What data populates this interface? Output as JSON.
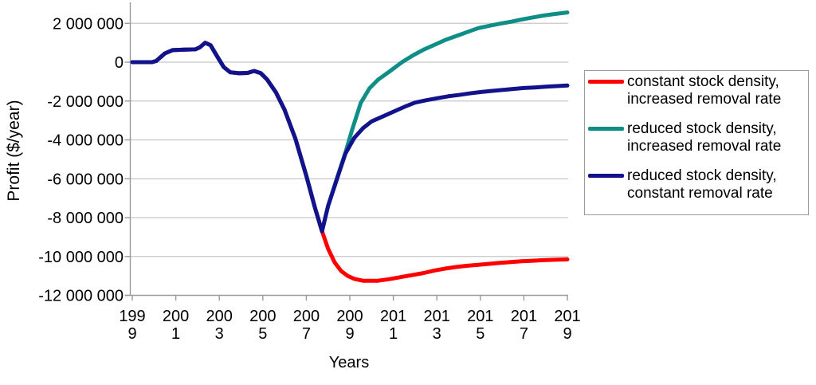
{
  "chart_data": {
    "type": "line",
    "title": "",
    "xlabel": "Years",
    "ylabel": "Profit ($/year)",
    "grid": "horizontal",
    "legend_position": "right",
    "xlim": [
      1999,
      2019
    ],
    "ylim": [
      -12000000,
      3000000
    ],
    "x_tick_values": [
      1999,
      2001,
      2003,
      2005,
      2007,
      2009,
      2011,
      2013,
      2015,
      2017,
      2019
    ],
    "x_tick_labels": [
      [
        "199",
        "9"
      ],
      [
        "200",
        "1"
      ],
      [
        "200",
        "3"
      ],
      [
        "200",
        "5"
      ],
      [
        "200",
        "7"
      ],
      [
        "200",
        "9"
      ],
      [
        "201",
        "1"
      ],
      [
        "201",
        "3"
      ],
      [
        "201",
        "5"
      ],
      [
        "201",
        "7"
      ],
      [
        "201",
        "9"
      ]
    ],
    "y_tick_values": [
      2000000,
      0,
      -2000000,
      -4000000,
      -6000000,
      -8000000,
      -10000000,
      -12000000
    ],
    "y_tick_labels": [
      "2 000 000",
      "0",
      "-2 000 000",
      "-4 000 000",
      "-6 000 000",
      "-8 000 000",
      "-10 000 000",
      "-12 000 000"
    ],
    "series": [
      {
        "name": "constant stock density,\nincreased removal rate",
        "color": "#fe0000",
        "points": [
          [
            1999.0,
            0
          ],
          [
            1999.9,
            0
          ],
          [
            2000.1,
            60000
          ],
          [
            2000.5,
            450000
          ],
          [
            2000.85,
            620000
          ],
          [
            2001.4,
            650000
          ],
          [
            2001.9,
            660000
          ],
          [
            2002.1,
            760000
          ],
          [
            2002.35,
            1000000
          ],
          [
            2002.6,
            870000
          ],
          [
            2002.9,
            300000
          ],
          [
            2003.2,
            -250000
          ],
          [
            2003.5,
            -520000
          ],
          [
            2003.9,
            -570000
          ],
          [
            2004.3,
            -555000
          ],
          [
            2004.6,
            -450000
          ],
          [
            2004.9,
            -560000
          ],
          [
            2005.2,
            -900000
          ],
          [
            2005.6,
            -1550000
          ],
          [
            2006.0,
            -2450000
          ],
          [
            2006.5,
            -3950000
          ],
          [
            2007.0,
            -5850000
          ],
          [
            2007.4,
            -7500000
          ],
          [
            2007.72,
            -8700000
          ],
          [
            2008.0,
            -9600000
          ],
          [
            2008.3,
            -10300000
          ],
          [
            2008.6,
            -10750000
          ],
          [
            2008.9,
            -11000000
          ],
          [
            2009.2,
            -11150000
          ],
          [
            2009.6,
            -11250000
          ],
          [
            2010.3,
            -11250000
          ],
          [
            2010.9,
            -11150000
          ],
          [
            2011.4,
            -11050000
          ],
          [
            2011.9,
            -10950000
          ],
          [
            2012.4,
            -10850000
          ],
          [
            2012.9,
            -10720000
          ],
          [
            2013.4,
            -10620000
          ],
          [
            2013.9,
            -10540000
          ],
          [
            2014.4,
            -10480000
          ],
          [
            2014.9,
            -10430000
          ],
          [
            2015.4,
            -10380000
          ],
          [
            2015.9,
            -10330000
          ],
          [
            2016.4,
            -10290000
          ],
          [
            2016.9,
            -10250000
          ],
          [
            2017.4,
            -10220000
          ],
          [
            2017.9,
            -10190000
          ],
          [
            2018.4,
            -10170000
          ],
          [
            2019.0,
            -10150000
          ]
        ]
      },
      {
        "name": "reduced stock density,\nincreased removal rate",
        "color": "#0f8e87",
        "points": [
          [
            1999.0,
            0
          ],
          [
            1999.9,
            0
          ],
          [
            2000.1,
            60000
          ],
          [
            2000.5,
            450000
          ],
          [
            2000.85,
            620000
          ],
          [
            2001.4,
            650000
          ],
          [
            2001.9,
            660000
          ],
          [
            2002.1,
            760000
          ],
          [
            2002.35,
            1000000
          ],
          [
            2002.6,
            870000
          ],
          [
            2002.9,
            300000
          ],
          [
            2003.2,
            -250000
          ],
          [
            2003.5,
            -520000
          ],
          [
            2003.9,
            -570000
          ],
          [
            2004.3,
            -555000
          ],
          [
            2004.6,
            -450000
          ],
          [
            2004.9,
            -560000
          ],
          [
            2005.2,
            -900000
          ],
          [
            2005.6,
            -1550000
          ],
          [
            2006.0,
            -2450000
          ],
          [
            2006.5,
            -3950000
          ],
          [
            2007.0,
            -5850000
          ],
          [
            2007.4,
            -7500000
          ],
          [
            2007.72,
            -8700000
          ],
          [
            2008.0,
            -7400000
          ],
          [
            2008.4,
            -6000000
          ],
          [
            2008.8,
            -4650000
          ],
          [
            2009.1,
            -3500000
          ],
          [
            2009.5,
            -2100000
          ],
          [
            2009.9,
            -1350000
          ],
          [
            2010.3,
            -900000
          ],
          [
            2010.8,
            -500000
          ],
          [
            2011.4,
            0
          ],
          [
            2011.9,
            350000
          ],
          [
            2012.4,
            650000
          ],
          [
            2012.9,
            900000
          ],
          [
            2013.4,
            1150000
          ],
          [
            2013.9,
            1350000
          ],
          [
            2014.4,
            1550000
          ],
          [
            2014.9,
            1750000
          ],
          [
            2015.4,
            1870000
          ],
          [
            2015.9,
            1980000
          ],
          [
            2016.4,
            2080000
          ],
          [
            2016.9,
            2200000
          ],
          [
            2017.4,
            2300000
          ],
          [
            2017.9,
            2400000
          ],
          [
            2018.4,
            2480000
          ],
          [
            2019.0,
            2560000
          ]
        ]
      },
      {
        "name": "reduced stock density,\nconstant removal rate",
        "color": "#12128c",
        "points": [
          [
            1999.0,
            0
          ],
          [
            1999.9,
            0
          ],
          [
            2000.1,
            60000
          ],
          [
            2000.5,
            450000
          ],
          [
            2000.85,
            620000
          ],
          [
            2001.4,
            650000
          ],
          [
            2001.9,
            660000
          ],
          [
            2002.1,
            760000
          ],
          [
            2002.35,
            1000000
          ],
          [
            2002.6,
            870000
          ],
          [
            2002.9,
            300000
          ],
          [
            2003.2,
            -250000
          ],
          [
            2003.5,
            -520000
          ],
          [
            2003.9,
            -570000
          ],
          [
            2004.3,
            -555000
          ],
          [
            2004.6,
            -450000
          ],
          [
            2004.9,
            -560000
          ],
          [
            2005.2,
            -900000
          ],
          [
            2005.6,
            -1550000
          ],
          [
            2006.0,
            -2450000
          ],
          [
            2006.5,
            -3950000
          ],
          [
            2007.0,
            -5850000
          ],
          [
            2007.4,
            -7500000
          ],
          [
            2007.72,
            -8700000
          ],
          [
            2008.0,
            -7400000
          ],
          [
            2008.4,
            -6050000
          ],
          [
            2008.8,
            -4700000
          ],
          [
            2009.2,
            -3900000
          ],
          [
            2009.6,
            -3400000
          ],
          [
            2010.0,
            -3050000
          ],
          [
            2010.5,
            -2800000
          ],
          [
            2011.0,
            -2550000
          ],
          [
            2011.5,
            -2300000
          ],
          [
            2012.0,
            -2080000
          ],
          [
            2012.5,
            -1960000
          ],
          [
            2013.0,
            -1860000
          ],
          [
            2013.5,
            -1760000
          ],
          [
            2014.0,
            -1690000
          ],
          [
            2014.5,
            -1610000
          ],
          [
            2015.0,
            -1540000
          ],
          [
            2015.5,
            -1480000
          ],
          [
            2016.0,
            -1430000
          ],
          [
            2016.5,
            -1380000
          ],
          [
            2017.0,
            -1330000
          ],
          [
            2017.5,
            -1300000
          ],
          [
            2018.0,
            -1260000
          ],
          [
            2018.5,
            -1230000
          ],
          [
            2019.0,
            -1200000
          ]
        ]
      }
    ],
    "colors": {
      "gridline": "#c6c6c6",
      "axis": "#9a9a9a",
      "text": "#000000"
    }
  }
}
